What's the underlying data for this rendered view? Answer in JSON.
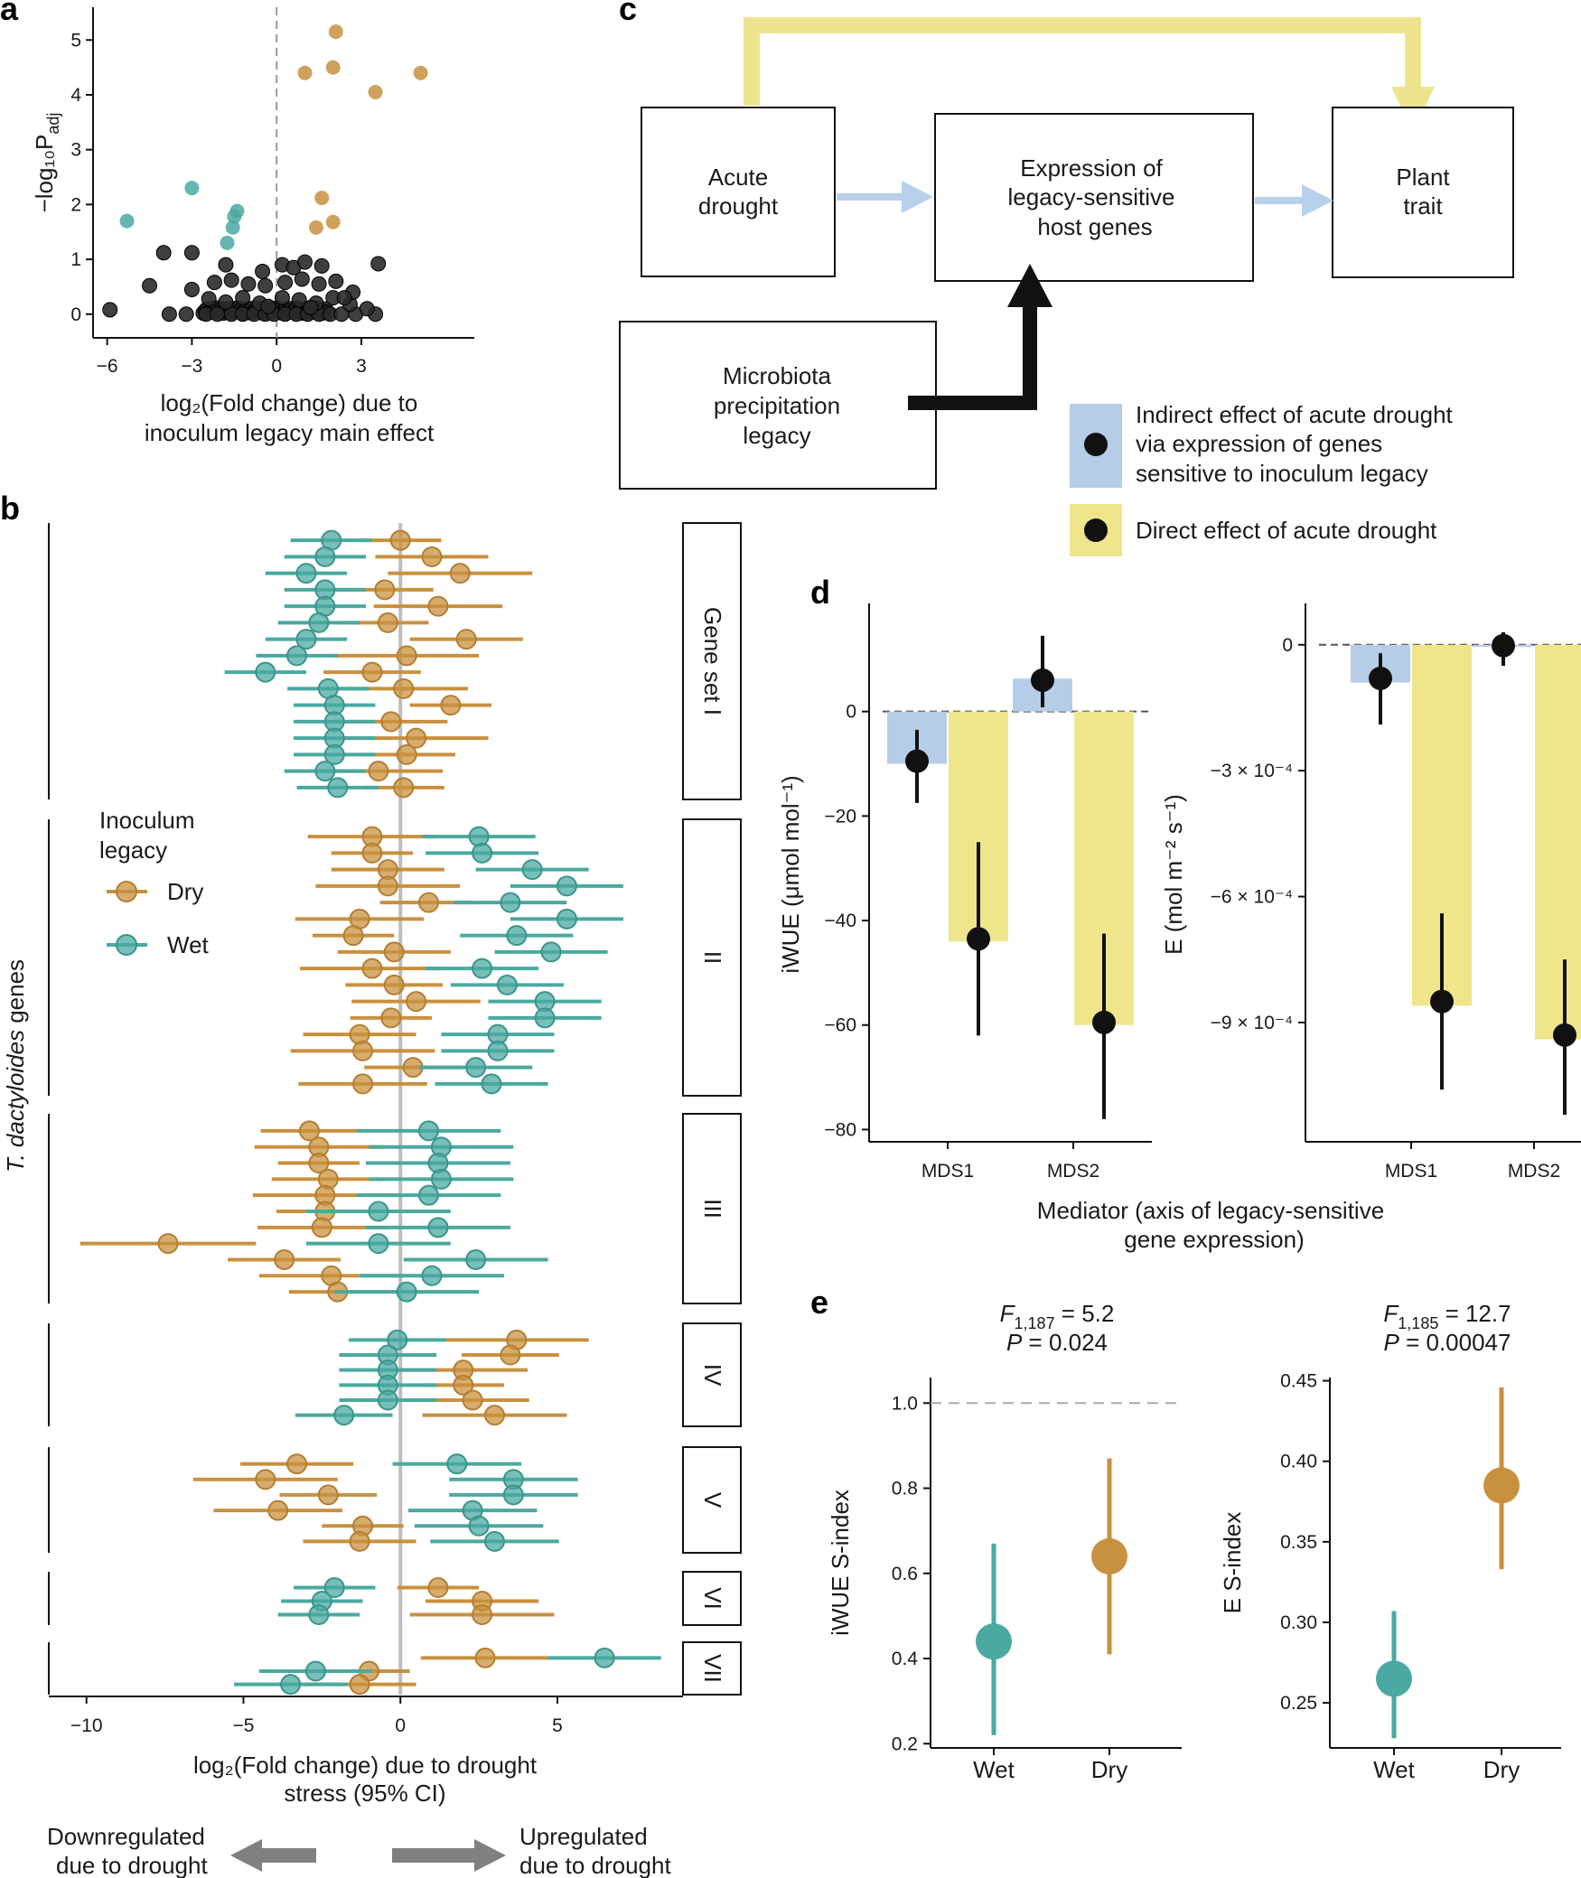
{
  "panel_labels": {
    "a": "a",
    "b": "b",
    "c": "c",
    "d": "d",
    "e": "e"
  },
  "colors": {
    "dry": "#c8913f",
    "wet": "#4aa9a0",
    "black": "#111111",
    "indirect": "#b6cde8",
    "direct": "#efe68c",
    "arrow_yellow": "#ece58e",
    "arrow_blue": "#b9d0ec",
    "grey_arrow": "#808080"
  },
  "chart_data": [
    {
      "id": "a",
      "type": "scatter",
      "xlabel_line1": "log₂(Fold change) due to",
      "xlabel_line2": "inoculum legacy main effect",
      "ylabel": "−log₁₀P",
      "ylabel_sub": "adj",
      "xlim": [
        -6.5,
        7
      ],
      "ylim": [
        -0.3,
        5.4
      ],
      "xticks": [
        -6,
        -3,
        0,
        3
      ],
      "xtick_labels": [
        "−6",
        "−3",
        "0",
        "3"
      ],
      "yticks": [
        0,
        1,
        2,
        3,
        4,
        5
      ],
      "ytick_labels": [
        "0",
        "1",
        "2",
        "3",
        "4",
        "5"
      ],
      "zero_line": 0,
      "orange_points": [
        [
          2.1,
          5.15
        ],
        [
          1.0,
          4.4
        ],
        [
          2.0,
          4.5
        ],
        [
          5.1,
          4.4
        ],
        [
          3.5,
          4.05
        ],
        [
          1.6,
          2.12
        ],
        [
          1.4,
          1.58
        ],
        [
          2.0,
          1.68
        ]
      ],
      "teal_points": [
        [
          -5.3,
          1.7
        ],
        [
          -3.0,
          2.3
        ],
        [
          -1.4,
          1.88
        ],
        [
          -1.5,
          1.78
        ],
        [
          -1.55,
          1.58
        ],
        [
          -1.75,
          1.3
        ]
      ],
      "black_points": [
        [
          -5.9,
          0.08
        ],
        [
          -4.0,
          1.12
        ],
        [
          -3.0,
          1.12
        ],
        [
          -4.5,
          0.52
        ],
        [
          -3.0,
          0.45
        ],
        [
          -3.8,
          0.0
        ],
        [
          -3.2,
          0.0
        ],
        [
          -2.5,
          0.0
        ],
        [
          -2.1,
          0.0
        ],
        [
          -1.6,
          0.0
        ],
        [
          -1.2,
          0.0
        ],
        [
          -0.8,
          0.0
        ],
        [
          -0.4,
          0.0
        ],
        [
          -0.1,
          0.0
        ],
        [
          0.3,
          0.0
        ],
        [
          0.7,
          0.0
        ],
        [
          1.1,
          0.0
        ],
        [
          1.5,
          0.0
        ],
        [
          1.9,
          0.0
        ],
        [
          2.3,
          0.0
        ],
        [
          2.8,
          0.0
        ],
        [
          3.5,
          0.0
        ],
        [
          -2.4,
          0.28
        ],
        [
          -1.8,
          0.22
        ],
        [
          -1.2,
          0.3
        ],
        [
          -0.6,
          0.2
        ],
        [
          0.2,
          0.3
        ],
        [
          0.8,
          0.26
        ],
        [
          1.4,
          0.2
        ],
        [
          2.0,
          0.3
        ],
        [
          2.6,
          0.18
        ],
        [
          -2.2,
          0.58
        ],
        [
          -1.6,
          0.62
        ],
        [
          -1.0,
          0.55
        ],
        [
          -0.4,
          0.52
        ],
        [
          0.3,
          0.58
        ],
        [
          0.9,
          0.64
        ],
        [
          1.5,
          0.55
        ],
        [
          2.1,
          0.6
        ],
        [
          2.7,
          0.4
        ],
        [
          -1.8,
          0.9
        ],
        [
          -0.5,
          0.78
        ],
        [
          0.2,
          0.9
        ],
        [
          0.6,
          0.85
        ],
        [
          1.0,
          0.95
        ],
        [
          1.6,
          0.88
        ],
        [
          2.4,
          0.3
        ],
        [
          3.6,
          0.92
        ],
        [
          -0.3,
          0.14
        ],
        [
          1.2,
          0.12
        ],
        [
          3.2,
          0.1
        ]
      ]
    },
    {
      "id": "b",
      "type": "forest",
      "xlabel_line1": "log₂(Fold change) due to drought",
      "xlabel_line2": "stress (95% CI)",
      "ylabel_italic": "T. dactyloides",
      "ylabel_rest": " genes",
      "xlim": [
        -11.2,
        9
      ],
      "xticks": [
        -10,
        -5,
        0,
        5
      ],
      "xtick_labels": [
        "−10",
        "−5",
        "0",
        "5"
      ],
      "legend_title_line1": "Inoculum",
      "legend_title_line2": "legacy",
      "legend_items": [
        "Dry",
        "Wet"
      ],
      "groups": [
        {
          "label": "Gene set I",
          "rows": [
            [
              0.0,
              -2.2
            ],
            [
              1.0,
              -2.4
            ],
            [
              1.9,
              -3.0
            ],
            [
              -0.5,
              -2.4
            ],
            [
              1.2,
              -2.4
            ],
            [
              -0.4,
              -2.6
            ],
            [
              2.1,
              -3.0
            ],
            [
              0.2,
              -3.3
            ],
            [
              -0.9,
              -4.3
            ],
            [
              0.1,
              -2.3
            ],
            [
              1.6,
              -2.1
            ],
            [
              -0.3,
              -2.1
            ],
            [
              0.5,
              -2.1
            ],
            [
              0.2,
              -2.1
            ],
            [
              -0.7,
              -2.4
            ],
            [
              0.1,
              -2.0
            ]
          ]
        },
        {
          "label": "II",
          "rows": [
            [
              -0.9,
              2.5
            ],
            [
              -0.9,
              2.6
            ],
            [
              -0.4,
              4.2
            ],
            [
              -0.4,
              5.3
            ],
            [
              0.9,
              3.5
            ],
            [
              -1.3,
              5.3
            ],
            [
              -1.5,
              3.7
            ],
            [
              -0.2,
              4.8
            ],
            [
              -0.9,
              2.6
            ],
            [
              -0.2,
              3.4
            ],
            [
              0.5,
              4.6
            ],
            [
              -0.3,
              4.6
            ],
            [
              -1.3,
              3.1
            ],
            [
              -1.2,
              3.1
            ],
            [
              0.4,
              2.4
            ],
            [
              -1.2,
              2.9
            ]
          ]
        },
        {
          "label": "III",
          "rows": [
            [
              -2.9,
              0.9
            ],
            [
              -2.6,
              1.3
            ],
            [
              -2.6,
              1.2
            ],
            [
              -2.3,
              1.3
            ],
            [
              -2.4,
              0.9
            ],
            [
              -2.4,
              -0.7
            ],
            [
              -2.5,
              1.2
            ],
            [
              -7.4,
              -0.7
            ],
            [
              -3.7,
              2.4
            ],
            [
              -2.2,
              1.0
            ],
            [
              -2.0,
              0.2
            ]
          ]
        },
        {
          "label": "IV",
          "rows": [
            [
              3.7,
              -0.1
            ],
            [
              3.5,
              -0.4
            ],
            [
              2.0,
              -0.4
            ],
            [
              2.0,
              -0.4
            ],
            [
              2.3,
              -0.4
            ],
            [
              3.0,
              -1.8
            ]
          ]
        },
        {
          "label": "V",
          "rows": [
            [
              -3.3,
              1.8
            ],
            [
              -4.3,
              3.6
            ],
            [
              -2.3,
              3.6
            ],
            [
              -3.9,
              2.3
            ],
            [
              -1.2,
              2.5
            ],
            [
              -1.3,
              3.0
            ]
          ]
        },
        {
          "label": "VI",
          "rows": [
            [
              1.2,
              -2.1
            ],
            [
              2.6,
              -2.5
            ],
            [
              2.6,
              -2.6
            ]
          ]
        },
        {
          "label": "VII",
          "rows": [
            [
              2.7,
              6.5
            ],
            [
              -1.0,
              -2.7
            ],
            [
              -1.3,
              -3.5
            ]
          ]
        }
      ],
      "arrow_left_line1": "Downregulated",
      "arrow_left_line2": "due to drought",
      "arrow_right_line1": "Upregulated",
      "arrow_right_line2": "due to drought"
    },
    {
      "id": "d_left",
      "type": "bar",
      "ylabel": "iWUE (μmol mol⁻¹)",
      "categories": [
        "MDS1",
        "MDS2"
      ],
      "series": [
        {
          "name": "Indirect",
          "values": [
            -10,
            6.3
          ]
        },
        {
          "name": "Direct",
          "values": [
            -44,
            -60
          ]
        }
      ],
      "points": [
        [
          -9.5,
          -17.5,
          -3.5
        ],
        [
          6.0,
          0.8,
          14.5
        ],
        [
          -43.5,
          -62,
          -25
        ],
        [
          -59.5,
          -78,
          -42.5
        ]
      ],
      "ylim": [
        -82,
        20
      ],
      "yticks": [
        0,
        -20,
        -40,
        -60,
        -80
      ],
      "ytick_labels": [
        "0",
        "−20",
        "−40",
        "−60",
        "−80"
      ]
    },
    {
      "id": "d_right",
      "type": "bar",
      "ylabel": "E (mol m⁻² s⁻¹)",
      "categories": [
        "MDS1",
        "MDS2"
      ],
      "series": [
        {
          "name": "Indirect",
          "values": [
            -9e-05,
            -5e-06
          ]
        },
        {
          "name": "Direct",
          "values": [
            -0.00086,
            -0.00094
          ]
        }
      ],
      "points": [
        [
          -8e-05,
          -0.00019,
          -2e-05
        ],
        [
          -2e-06,
          -5e-05,
          3e-05
        ],
        [
          -0.00085,
          -0.00106,
          -0.00064
        ],
        [
          -0.00093,
          -0.00112,
          -0.00075
        ]
      ],
      "ylim": [
        -0.00118,
        9e-05
      ],
      "yticks": [
        0,
        -0.0003,
        -0.0006,
        -0.0009
      ],
      "ytick_labels": [
        "0",
        "−3 × 10⁻⁴",
        "−6 × 10⁻⁴",
        "−9 × 10⁻⁴"
      ],
      "xlabel_line1": "Mediator (axis of legacy-sensitive",
      "xlabel_line2": "gene expression)"
    },
    {
      "id": "e_left",
      "type": "pointrange",
      "stat_f": "F",
      "stat_f_sub": "1,187",
      "stat_f_val": " = 5.2",
      "stat_p": "P",
      "stat_p_val": " = 0.024",
      "ylabel": "iWUE S-index",
      "categories": [
        "Wet",
        "Dry"
      ],
      "points": [
        [
          0.44,
          0.22,
          0.67
        ],
        [
          0.64,
          0.41,
          0.87
        ]
      ],
      "ylim": [
        0.19,
        1.06
      ],
      "yticks": [
        0.2,
        0.4,
        0.6,
        0.8,
        1.0
      ],
      "ytick_labels": [
        "0.2",
        "0.4",
        "0.6",
        "0.8",
        "1.0"
      ],
      "ref_line": 1.0
    },
    {
      "id": "e_right",
      "type": "pointrange",
      "stat_f": "F",
      "stat_f_sub": "1,185",
      "stat_f_val": " = 12.7",
      "stat_p": "P",
      "stat_p_val": " = 0.00047",
      "ylabel": "E S-index",
      "categories": [
        "Wet",
        "Dry"
      ],
      "points": [
        [
          0.265,
          0.228,
          0.307
        ],
        [
          0.385,
          0.333,
          0.446
        ]
      ],
      "ylim": [
        0.222,
        0.452
      ],
      "yticks": [
        0.25,
        0.3,
        0.35,
        0.4,
        0.45
      ],
      "ytick_labels": [
        "0.25",
        "0.30",
        "0.35",
        "0.40",
        "0.45"
      ]
    }
  ],
  "diagram_c": {
    "acute_line1": "Acute",
    "acute_line2": "drought",
    "expr_line1": "Expression of",
    "expr_line2": "legacy-sensitive",
    "expr_line3": "host genes",
    "trait_line1": "Plant",
    "trait_line2": "trait",
    "micro_line1": "Microbiota",
    "micro_line2": "precipitation",
    "micro_line3": "legacy",
    "legend_indirect_line1": "Indirect effect of acute drought",
    "legend_indirect_line2": "via expression of genes",
    "legend_indirect_line3": "sensitive to inoculum legacy",
    "legend_direct": "Direct effect of acute drought"
  }
}
